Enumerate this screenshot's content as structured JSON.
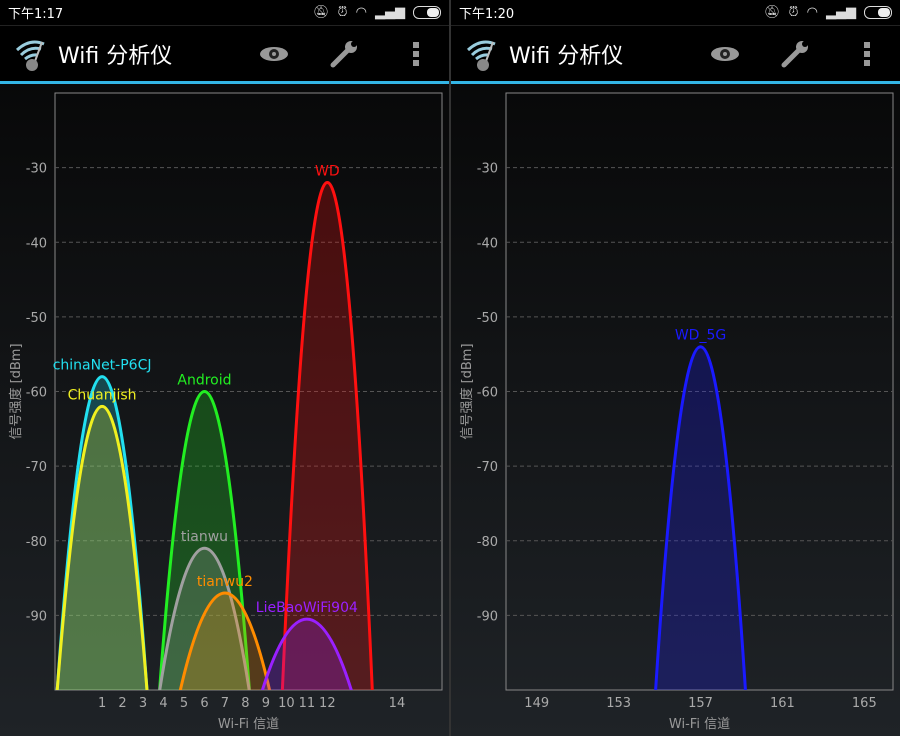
{
  "app": {
    "title": "Wifi 分析仪",
    "icons": [
      "wifi-analyzer-logo",
      "eye-icon",
      "wrench-icon",
      "overflow-menu-icon"
    ]
  },
  "screens": [
    {
      "status_time": "下午1:17",
      "chart_data": {
        "type": "area",
        "ylabel": "信号强度 [dBm]",
        "xlabel": "Wi-Fi 信道",
        "ylim": [
          -100,
          -20
        ],
        "yticks": [
          -30,
          -40,
          -50,
          -60,
          -70,
          -80,
          -90
        ],
        "xlim": [
          -1.3,
          17.6
        ],
        "xticks": [
          "1",
          "2",
          "3",
          "4",
          "5",
          "6",
          "7",
          "8",
          "9",
          "10",
          "11",
          "12",
          "14"
        ],
        "grid": true,
        "series": [
          {
            "name": "chinaNet-P6CJ",
            "channel": 1,
            "dbm": -58,
            "color": "#22e0f0"
          },
          {
            "name": "Chuanjish",
            "channel": 1,
            "dbm": -62,
            "color": "#f0f020"
          },
          {
            "name": "Android",
            "channel": 6,
            "dbm": -60,
            "color": "#22ee22"
          },
          {
            "name": "tianwu",
            "channel": 6,
            "dbm": -81,
            "color": "#a0a0a0"
          },
          {
            "name": "tianwu2",
            "channel": 7,
            "dbm": -87,
            "color": "#ff8c00"
          },
          {
            "name": "WD",
            "channel": 12,
            "dbm": -32,
            "color": "#ff1010"
          },
          {
            "name": "LieBaoWiFi904",
            "channel": 11,
            "dbm": -90.5,
            "color": "#9a20ff"
          }
        ]
      }
    },
    {
      "status_time": "下午1:20",
      "chart_data": {
        "type": "area",
        "ylabel": "信号强度 [dBm]",
        "xlabel": "Wi-Fi 信道",
        "ylim": [
          -100,
          -20
        ],
        "yticks": [
          -30,
          -40,
          -50,
          -60,
          -70,
          -80,
          -90
        ],
        "xlim": [
          147.5,
          166.4
        ],
        "xticks": [
          "149",
          "153",
          "157",
          "161",
          "165"
        ],
        "grid": true,
        "series": [
          {
            "name": "WD_5G",
            "channel": 157,
            "dbm": -54,
            "color": "#1a1aff"
          }
        ]
      }
    }
  ]
}
